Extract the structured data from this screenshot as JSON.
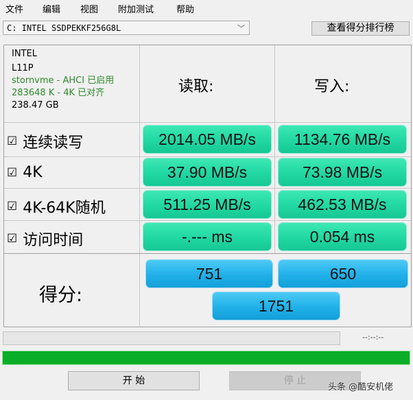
{
  "menu": [
    "文件",
    "编辑",
    "视图",
    "附加测试",
    "帮助"
  ],
  "drive_select": "C: INTEL SSDPEKKF256G8L",
  "ranking_button": "查看得分排行榜",
  "info": {
    "vendor": "INTEL",
    "model": "L11P",
    "driver": "stornvme - AHCI 已启用",
    "alignment": "283648 K - 4K 已对齐",
    "size": "238.47 GB"
  },
  "headers": {
    "read": "读取:",
    "write": "写入:"
  },
  "rows": [
    {
      "label": "连续读写",
      "checked": true,
      "read": "2014.05 MB/s",
      "write": "1134.76 MB/s"
    },
    {
      "label": "4K",
      "checked": true,
      "read": "37.90 MB/s",
      "write": "73.98 MB/s"
    },
    {
      "label": "4K-64K随机",
      "checked": true,
      "read": "511.25 MB/s",
      "write": "462.53 MB/s"
    },
    {
      "label": "访问时间",
      "checked": true,
      "read": "-.--- ms",
      "write": "0.054 ms"
    }
  ],
  "score": {
    "label": "得分:",
    "read": "751",
    "write": "650",
    "total": "1751"
  },
  "elapsed": "--:--:--",
  "progress_percent": 100,
  "buttons": {
    "start": "开 始",
    "stop": "停 止"
  },
  "watermark": "头条 @酷安机佬",
  "colors": {
    "result_cell": "#22d9a4",
    "score_cell": "#20b0e8",
    "progress": "#0aad28",
    "info_green": "#2e8b2e"
  }
}
